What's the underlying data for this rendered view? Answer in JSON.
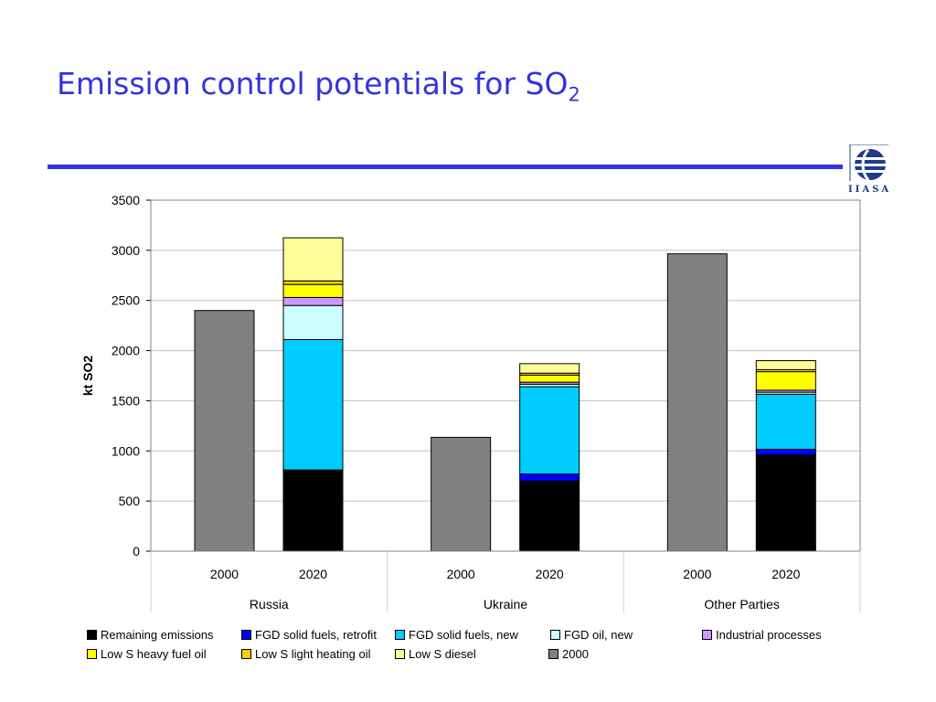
{
  "slide": {
    "title_main": "Emission control potentials for SO",
    "title_sub": "2",
    "logo_text": "IIASA"
  },
  "colors": {
    "title": "#3333dd",
    "rule": "#3333dd"
  },
  "chart_data": {
    "type": "bar",
    "stacked": true,
    "title": "",
    "xlabel": "",
    "ylabel": "kt SO2",
    "ylim": [
      0,
      3500
    ],
    "yticks": [
      0,
      500,
      1000,
      1500,
      2000,
      2500,
      3000,
      3500
    ],
    "grid": true,
    "legend_position": "bottom",
    "groups": [
      {
        "name": "Russia",
        "years": [
          "2000",
          "2020"
        ]
      },
      {
        "name": "Ukraine",
        "years": [
          "2000",
          "2020"
        ]
      },
      {
        "name": "Other Parties",
        "years": [
          "2000",
          "2020"
        ]
      }
    ],
    "categories": [
      "Russia 2000",
      "Russia 2020",
      "Ukraine 2000",
      "Ukraine 2020",
      "Other Parties 2000",
      "Other Parties 2020"
    ],
    "series": [
      {
        "name": "Remaining emissions",
        "color": "#000000",
        "values": [
          0,
          810,
          0,
          700,
          0,
          960
        ]
      },
      {
        "name": "FGD solid fuels, retrofit",
        "color": "#0000ff",
        "values": [
          0,
          0,
          0,
          70,
          0,
          55
        ]
      },
      {
        "name": "FGD solid fuels, new",
        "color": "#00ccff",
        "values": [
          0,
          1300,
          0,
          870,
          0,
          550
        ]
      },
      {
        "name": "FGD oil, new",
        "color": "#ccffff",
        "values": [
          0,
          340,
          0,
          25,
          0,
          20
        ]
      },
      {
        "name": "Industrial processes",
        "color": "#cc99ff",
        "values": [
          0,
          80,
          0,
          20,
          0,
          20
        ]
      },
      {
        "name": "Low S heavy fuel oil",
        "color": "#ffff00",
        "values": [
          0,
          130,
          0,
          70,
          0,
          185
        ]
      },
      {
        "name": "Low S light heating oil",
        "color": "#ffcc00",
        "values": [
          0,
          35,
          0,
          20,
          0,
          20
        ]
      },
      {
        "name": "Low S diesel",
        "color": "#ffff99",
        "values": [
          0,
          430,
          0,
          95,
          0,
          90
        ]
      },
      {
        "name": "2000",
        "color": "#808080",
        "values": [
          2400,
          0,
          1135,
          0,
          2965,
          0
        ]
      }
    ]
  }
}
